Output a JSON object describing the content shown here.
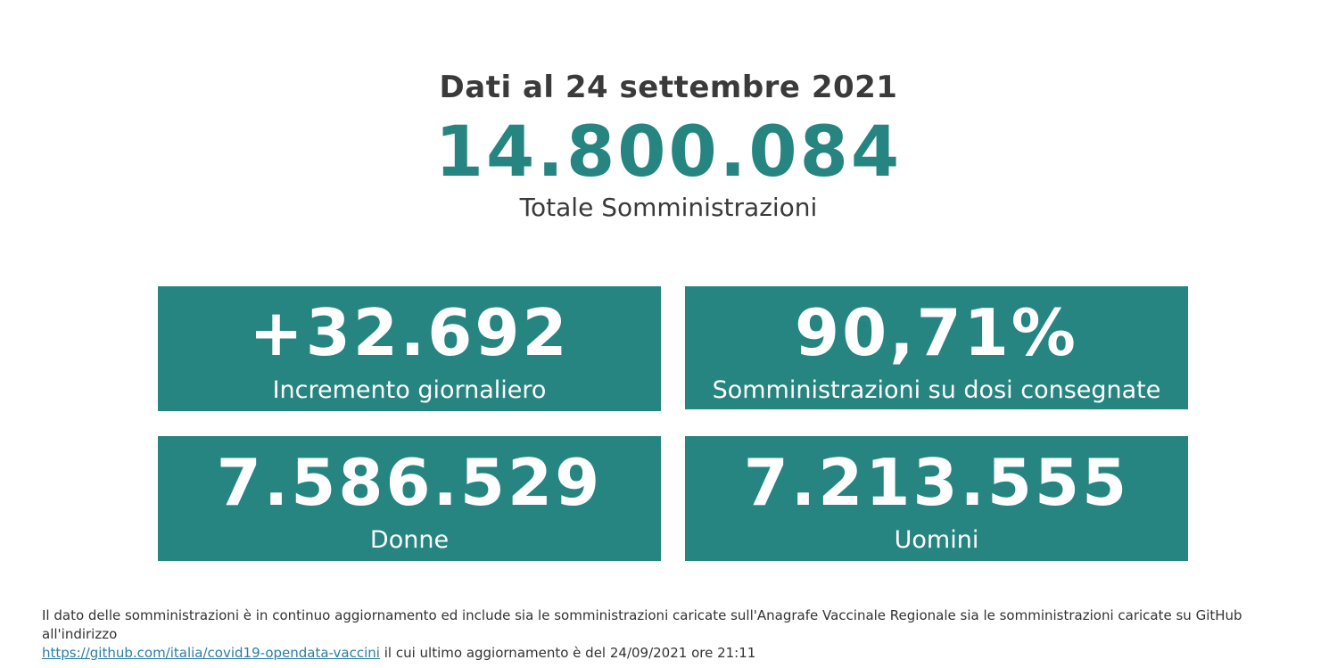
{
  "header": {
    "date_line": "Dati al 24 settembre 2021",
    "total_value": "14.800.084",
    "total_label": "Totale Somministrazioni"
  },
  "cards": [
    {
      "value": "+32.692",
      "label": "Incremento giornaliero"
    },
    {
      "value": "90,71%",
      "label": "Somministrazioni su dosi consegnate"
    },
    {
      "value": "7.586.529",
      "label": "Donne"
    },
    {
      "value": "7.213.555",
      "label": "Uomini"
    }
  ],
  "footnote": {
    "text_before": "Il dato delle somministrazioni è in continuo aggiornamento ed include sia le somministrazioni caricate sull'Anagrafe Vaccinale Regionale sia le somministrazioni caricate su GitHub all'indirizzo",
    "link_text": "https://github.com/italia/covid19-opendata-vaccini",
    "text_after": "il cui ultimo aggiornamento è del 24/09/2021 ore 21:11"
  },
  "colors": {
    "accent": "#268580",
    "text_dark": "#3a3a3a",
    "link": "#2a7ea3",
    "card_text": "#ffffff"
  }
}
